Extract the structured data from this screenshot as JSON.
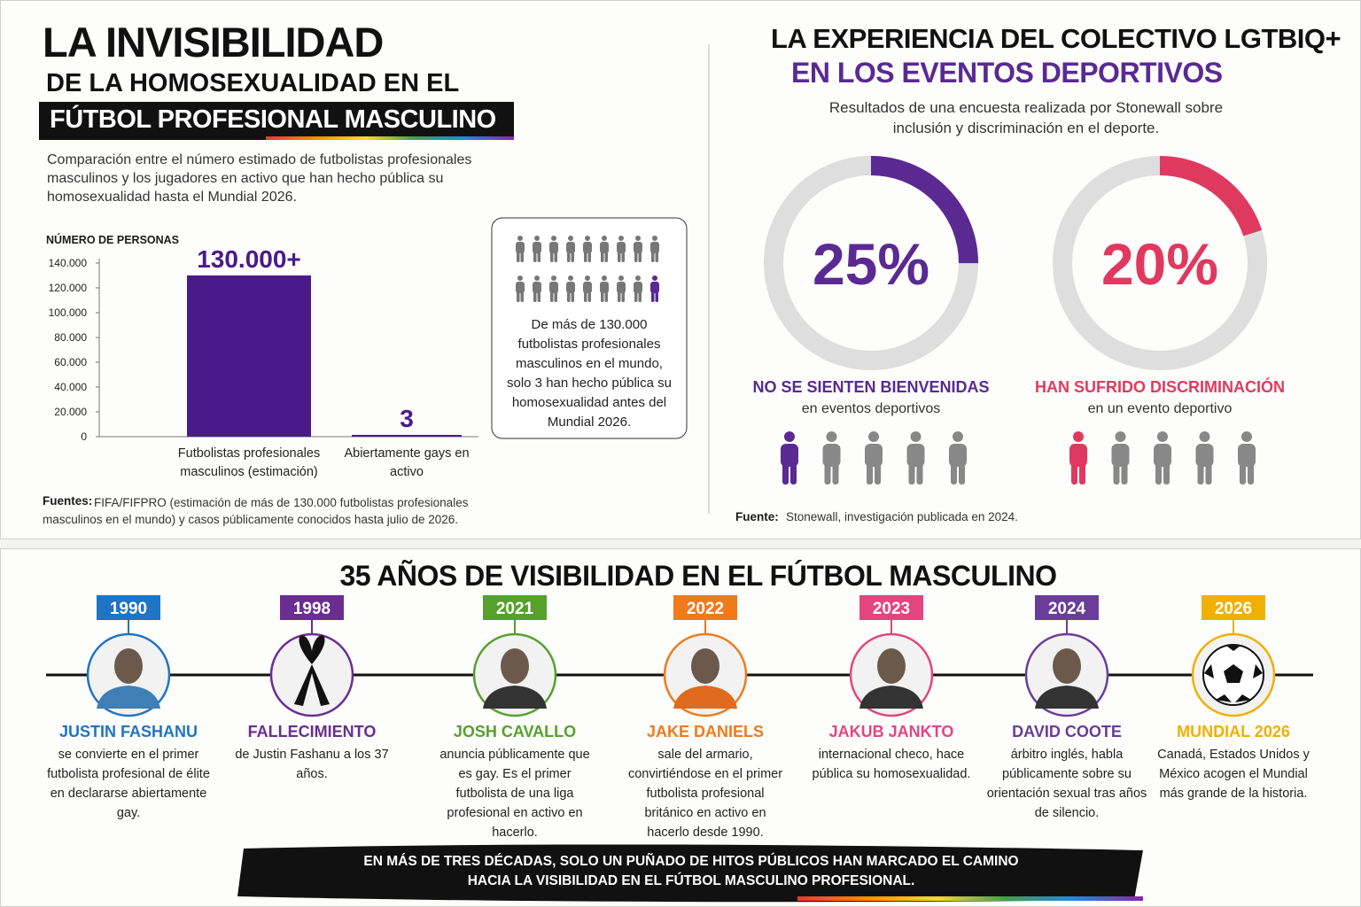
{
  "left": {
    "title_1": "LA INVISIBILIDAD",
    "title_2": "DE LA HOMOSEXUALIDAD EN EL",
    "title_3": "FÚTBOL PROFESIONAL MASCULINO",
    "description": "Comparación entre el número estimado de futbolistas profesionales masculinos y los jugadores en activo que han hecho pública su homosexualidad hasta el Mundial 2026.",
    "callout": "De más de 130.000 futbolistas profesionales masculinos en el mundo, solo 3 han hecho pública su homosexualidad antes del Mundial 2026.",
    "source_label": "Fuentes:",
    "source_text": "FIFA/FIFPRO (estimación de más de 130.000 futbolistas profesionales masculinos en el mundo) y casos públicamente conocidos hasta julio de 2026."
  },
  "right": {
    "title_1": "LA EXPERIENCIA DEL COLECTIVO LGTBIQ+",
    "title_2": "EN LOS EVENTOS DEPORTIVOS",
    "subtitle": "Resultados de una encuesta realizada por Stonewall sobre inclusión y discriminación en el deporte.",
    "source_label": "Fuente:",
    "source_text": "Stonewall, investigación publicada en 2024."
  },
  "chart_data": [
    {
      "type": "bar",
      "y_label": "NÚMERO DE PERSONAS",
      "categories": [
        "Futbolistas profesionales masculinos (estimación)",
        "Abiertamente gays en activo"
      ],
      "values": [
        130000,
        3
      ],
      "value_labels": [
        "130.000+",
        "3"
      ],
      "color": "#4a1a8a",
      "ylim": [
        0,
        140000
      ],
      "yticks": [
        0,
        {
          "value": 20000,
          "label": "20.000"
        },
        {
          "value": 40000,
          "label": "40.000"
        },
        {
          "value": 60000,
          "label": "60.000"
        },
        {
          "value": 80000,
          "label": "80.000"
        },
        {
          "value": 100000,
          "label": "100.000"
        },
        {
          "value": 120000,
          "label": "120.000"
        },
        {
          "value": 140000,
          "label": "140.000"
        }
      ]
    },
    {
      "type": "donut",
      "values": [
        25
      ],
      "value_labels": [
        "25%"
      ],
      "color": "#5a2a92",
      "label": "NO SE SIENTEN BIENVENIDAS",
      "sublabel": "en eventos deportivos"
    },
    {
      "type": "donut",
      "values": [
        20
      ],
      "value_labels": [
        "20%"
      ],
      "color": "#e0395f",
      "label": "HAN SUFRIDO DISCRIMINACIÓN",
      "sublabel": "en un evento deportivo"
    }
  ],
  "timeline": {
    "title": "35 AÑOS DE VISIBILIDAD EN EL FÚTBOL MASCULINO",
    "events": [
      {
        "year": "1990",
        "name": "JUSTIN FASHANU",
        "text": "se convierte en el primer futbolista profesional de élite en declararse abiertamente gay.",
        "color": "#1f74c4"
      },
      {
        "year": "1998",
        "name": "FALLECIMIENTO",
        "text": "de Justin Fashanu a los 37 años.",
        "color": "#6a2d91"
      },
      {
        "year": "2021",
        "name": "JOSH CAVALLO",
        "text": "anuncia públicamente que es gay. Es el primer futbolista de una liga profesional en activo en hacerlo.",
        "color": "#56a02c"
      },
      {
        "year": "2022",
        "name": "JAKE DANIELS",
        "text": "sale del armario, convirtiéndose en el primer futbolista profesional británico en activo en hacerlo desde 1990.",
        "color": "#f07a1a"
      },
      {
        "year": "2023",
        "name": "JAKUB JANKTO",
        "text": "internacional checo, hace pública su homosexualidad.",
        "color": "#e3457f"
      },
      {
        "year": "2024",
        "name": "DAVID COOTE",
        "text": "árbitro inglés, habla públicamente sobre su orientación sexual tras años de silencio.",
        "color": "#6a3d9a"
      },
      {
        "year": "2026",
        "name": "MUNDIAL 2026",
        "text": "Canadá, Estados Unidos y México acogen el Mundial más grande de la historia.",
        "color": "#efb000"
      }
    ],
    "banner_1": "EN MÁS DE TRES DÉCADAS, SOLO UN PUÑADO DE HITOS PÚBLICOS HAN MARCADO EL CAMINO",
    "banner_2": "HACIA LA VISIBILIDAD EN EL FÚTBOL MASCULINO PROFESIONAL."
  }
}
